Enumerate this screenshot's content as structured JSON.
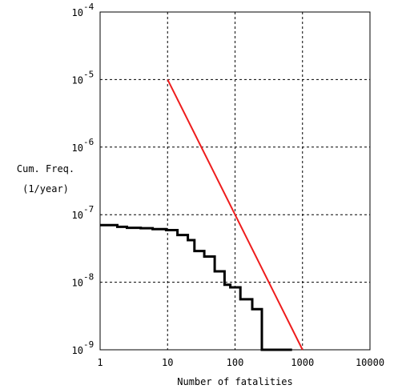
{
  "chart_data": {
    "type": "line",
    "title": "",
    "xlabel": "Number of fatalities",
    "ylabel_lines": [
      "Cum. Freq.",
      "(1/year)"
    ],
    "xscale": "log",
    "yscale": "log",
    "xlim": [
      1,
      10000
    ],
    "ylim": [
      1e-09,
      0.0001
    ],
    "grid": true,
    "x_ticks": [
      {
        "value": 1,
        "label": "1"
      },
      {
        "value": 10,
        "label": "10"
      },
      {
        "value": 100,
        "label": "100"
      },
      {
        "value": 1000,
        "label": "1000"
      },
      {
        "value": 10000,
        "label": "10000"
      }
    ],
    "y_ticks": [
      {
        "value": 0.0001,
        "base": "10",
        "exponent": "-4"
      },
      {
        "value": 1e-05,
        "base": "10",
        "exponent": "-5"
      },
      {
        "value": 1e-06,
        "base": "10",
        "exponent": "-6"
      },
      {
        "value": 1e-07,
        "base": "10",
        "exponent": "-7"
      },
      {
        "value": 1e-08,
        "base": "10",
        "exponent": "-8"
      },
      {
        "value": 1e-09,
        "base": "10",
        "exponent": "-9"
      }
    ],
    "series": [
      {
        "color": "#ee1c1c",
        "style": "line",
        "points": [
          [
            10,
            1e-05
          ],
          [
            1000,
            1e-09
          ]
        ]
      },
      {
        "color": "#000000",
        "style": "step",
        "points": [
          [
            1,
            7e-08
          ],
          [
            1.8,
            6.6e-08
          ],
          [
            2.5,
            6.4e-08
          ],
          [
            4,
            6.3e-08
          ],
          [
            6,
            6.1e-08
          ],
          [
            9.5,
            5.9e-08
          ],
          [
            14,
            5e-08
          ],
          [
            20,
            4.2e-08
          ],
          [
            25,
            2.9e-08
          ],
          [
            35,
            2.4e-08
          ],
          [
            50,
            1.45e-08
          ],
          [
            70,
            9.2e-09
          ],
          [
            85,
            8.4e-09
          ],
          [
            120,
            5.6e-09
          ],
          [
            180,
            4e-09
          ],
          [
            250,
            1e-09
          ],
          [
            700,
            1e-09
          ]
        ]
      }
    ]
  }
}
